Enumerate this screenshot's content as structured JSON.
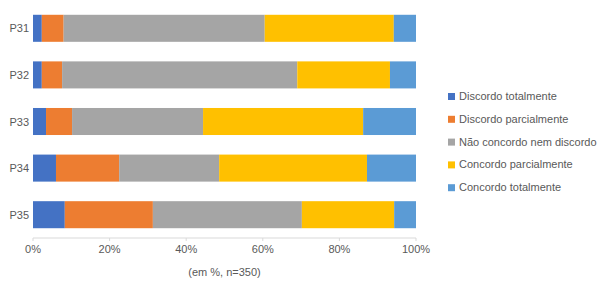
{
  "chart_data": {
    "type": "bar",
    "orientation": "horizontal",
    "stacked": true,
    "grid": false,
    "legend": "right",
    "x_label": "(em %, n=350)",
    "categories": [
      "P31",
      "P32",
      "P33",
      "P34",
      "P35"
    ],
    "xlim": [
      0,
      100
    ],
    "xticks": [
      {
        "value": 0,
        "label": "0%"
      },
      {
        "value": 20,
        "label": "20%"
      },
      {
        "value": 40,
        "label": "40%"
      },
      {
        "value": 60,
        "label": "60%"
      },
      {
        "value": 80,
        "label": "80%"
      },
      {
        "value": 100,
        "label": "100%"
      }
    ],
    "series": [
      {
        "name": "Discordo totalmente",
        "color": "#4472c4",
        "values": [
          2.3,
          2.3,
          3.4,
          6.0,
          8.3
        ]
      },
      {
        "name": "Discordo parcialmente",
        "color": "#ed7d31",
        "values": [
          5.7,
          5.3,
          6.8,
          16.5,
          23.0
        ]
      },
      {
        "name": "Não concordo nem discordo",
        "color": "#a5a5a5",
        "values": [
          52.5,
          61.4,
          34.2,
          26.1,
          38.9
        ]
      },
      {
        "name": "Concordo parcialmente",
        "color": "#ffc000",
        "values": [
          33.7,
          24.2,
          41.8,
          38.6,
          24.1
        ]
      },
      {
        "name": "Concordo totalmente",
        "color": "#5b9bd5",
        "values": [
          5.8,
          6.8,
          13.8,
          12.8,
          5.7
        ]
      }
    ]
  }
}
